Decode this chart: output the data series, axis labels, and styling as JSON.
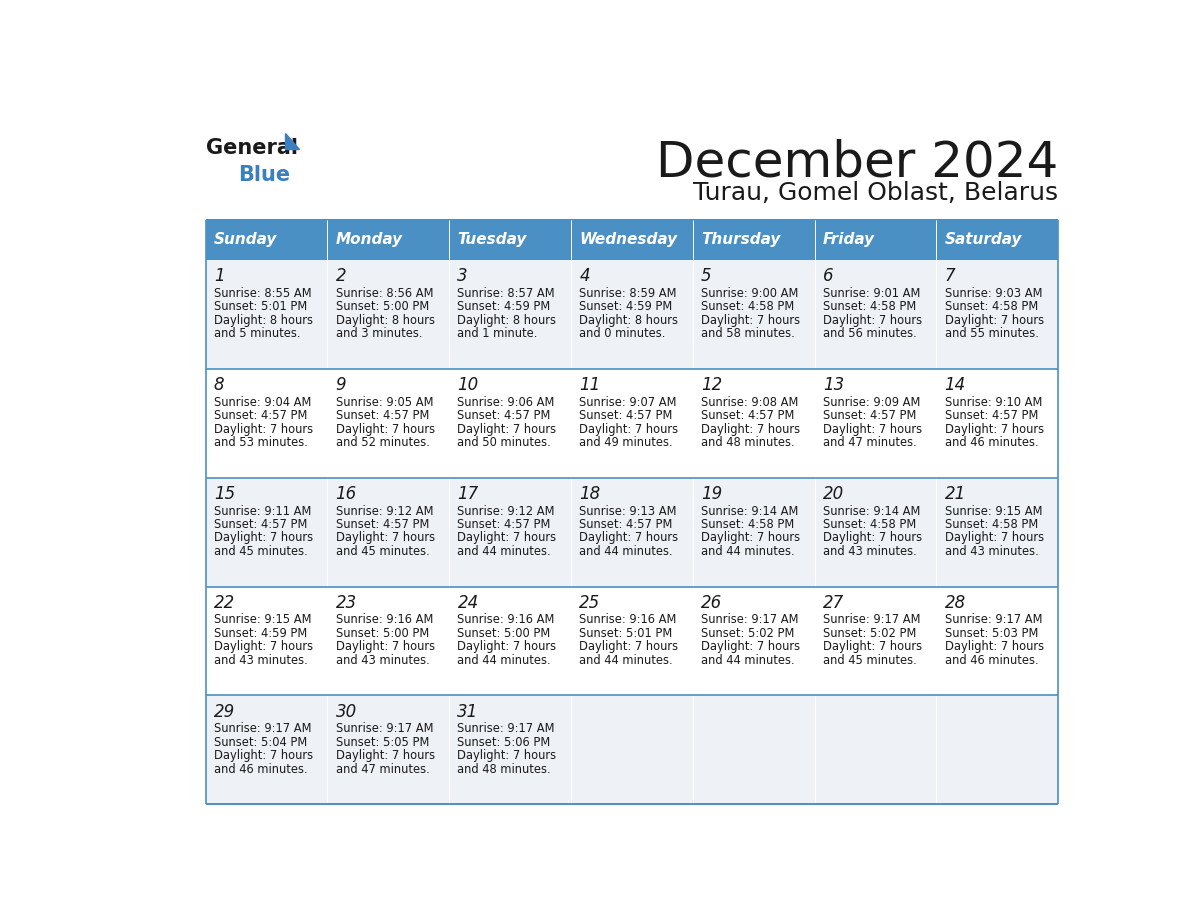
{
  "title": "December 2024",
  "subtitle": "Turau, Gomel Oblast, Belarus",
  "header_bg_color": "#4a90c4",
  "header_text_color": "#ffffff",
  "row_bg_even": "#eef2f7",
  "row_bg_odd": "#ffffff",
  "border_color": "#4a90c4",
  "days_of_week": [
    "Sunday",
    "Monday",
    "Tuesday",
    "Wednesday",
    "Thursday",
    "Friday",
    "Saturday"
  ],
  "calendar_data": [
    [
      {
        "day": 1,
        "sunrise": "8:55 AM",
        "sunset": "5:01 PM",
        "daylight_line1": "Daylight: 8 hours",
        "daylight_line2": "and 5 minutes."
      },
      {
        "day": 2,
        "sunrise": "8:56 AM",
        "sunset": "5:00 PM",
        "daylight_line1": "Daylight: 8 hours",
        "daylight_line2": "and 3 minutes."
      },
      {
        "day": 3,
        "sunrise": "8:57 AM",
        "sunset": "4:59 PM",
        "daylight_line1": "Daylight: 8 hours",
        "daylight_line2": "and 1 minute."
      },
      {
        "day": 4,
        "sunrise": "8:59 AM",
        "sunset": "4:59 PM",
        "daylight_line1": "Daylight: 8 hours",
        "daylight_line2": "and 0 minutes."
      },
      {
        "day": 5,
        "sunrise": "9:00 AM",
        "sunset": "4:58 PM",
        "daylight_line1": "Daylight: 7 hours",
        "daylight_line2": "and 58 minutes."
      },
      {
        "day": 6,
        "sunrise": "9:01 AM",
        "sunset": "4:58 PM",
        "daylight_line1": "Daylight: 7 hours",
        "daylight_line2": "and 56 minutes."
      },
      {
        "day": 7,
        "sunrise": "9:03 AM",
        "sunset": "4:58 PM",
        "daylight_line1": "Daylight: 7 hours",
        "daylight_line2": "and 55 minutes."
      }
    ],
    [
      {
        "day": 8,
        "sunrise": "9:04 AM",
        "sunset": "4:57 PM",
        "daylight_line1": "Daylight: 7 hours",
        "daylight_line2": "and 53 minutes."
      },
      {
        "day": 9,
        "sunrise": "9:05 AM",
        "sunset": "4:57 PM",
        "daylight_line1": "Daylight: 7 hours",
        "daylight_line2": "and 52 minutes."
      },
      {
        "day": 10,
        "sunrise": "9:06 AM",
        "sunset": "4:57 PM",
        "daylight_line1": "Daylight: 7 hours",
        "daylight_line2": "and 50 minutes."
      },
      {
        "day": 11,
        "sunrise": "9:07 AM",
        "sunset": "4:57 PM",
        "daylight_line1": "Daylight: 7 hours",
        "daylight_line2": "and 49 minutes."
      },
      {
        "day": 12,
        "sunrise": "9:08 AM",
        "sunset": "4:57 PM",
        "daylight_line1": "Daylight: 7 hours",
        "daylight_line2": "and 48 minutes."
      },
      {
        "day": 13,
        "sunrise": "9:09 AM",
        "sunset": "4:57 PM",
        "daylight_line1": "Daylight: 7 hours",
        "daylight_line2": "and 47 minutes."
      },
      {
        "day": 14,
        "sunrise": "9:10 AM",
        "sunset": "4:57 PM",
        "daylight_line1": "Daylight: 7 hours",
        "daylight_line2": "and 46 minutes."
      }
    ],
    [
      {
        "day": 15,
        "sunrise": "9:11 AM",
        "sunset": "4:57 PM",
        "daylight_line1": "Daylight: 7 hours",
        "daylight_line2": "and 45 minutes."
      },
      {
        "day": 16,
        "sunrise": "9:12 AM",
        "sunset": "4:57 PM",
        "daylight_line1": "Daylight: 7 hours",
        "daylight_line2": "and 45 minutes."
      },
      {
        "day": 17,
        "sunrise": "9:12 AM",
        "sunset": "4:57 PM",
        "daylight_line1": "Daylight: 7 hours",
        "daylight_line2": "and 44 minutes."
      },
      {
        "day": 18,
        "sunrise": "9:13 AM",
        "sunset": "4:57 PM",
        "daylight_line1": "Daylight: 7 hours",
        "daylight_line2": "and 44 minutes."
      },
      {
        "day": 19,
        "sunrise": "9:14 AM",
        "sunset": "4:58 PM",
        "daylight_line1": "Daylight: 7 hours",
        "daylight_line2": "and 44 minutes."
      },
      {
        "day": 20,
        "sunrise": "9:14 AM",
        "sunset": "4:58 PM",
        "daylight_line1": "Daylight: 7 hours",
        "daylight_line2": "and 43 minutes."
      },
      {
        "day": 21,
        "sunrise": "9:15 AM",
        "sunset": "4:58 PM",
        "daylight_line1": "Daylight: 7 hours",
        "daylight_line2": "and 43 minutes."
      }
    ],
    [
      {
        "day": 22,
        "sunrise": "9:15 AM",
        "sunset": "4:59 PM",
        "daylight_line1": "Daylight: 7 hours",
        "daylight_line2": "and 43 minutes."
      },
      {
        "day": 23,
        "sunrise": "9:16 AM",
        "sunset": "5:00 PM",
        "daylight_line1": "Daylight: 7 hours",
        "daylight_line2": "and 43 minutes."
      },
      {
        "day": 24,
        "sunrise": "9:16 AM",
        "sunset": "5:00 PM",
        "daylight_line1": "Daylight: 7 hours",
        "daylight_line2": "and 44 minutes."
      },
      {
        "day": 25,
        "sunrise": "9:16 AM",
        "sunset": "5:01 PM",
        "daylight_line1": "Daylight: 7 hours",
        "daylight_line2": "and 44 minutes."
      },
      {
        "day": 26,
        "sunrise": "9:17 AM",
        "sunset": "5:02 PM",
        "daylight_line1": "Daylight: 7 hours",
        "daylight_line2": "and 44 minutes."
      },
      {
        "day": 27,
        "sunrise": "9:17 AM",
        "sunset": "5:02 PM",
        "daylight_line1": "Daylight: 7 hours",
        "daylight_line2": "and 45 minutes."
      },
      {
        "day": 28,
        "sunrise": "9:17 AM",
        "sunset": "5:03 PM",
        "daylight_line1": "Daylight: 7 hours",
        "daylight_line2": "and 46 minutes."
      }
    ],
    [
      {
        "day": 29,
        "sunrise": "9:17 AM",
        "sunset": "5:04 PM",
        "daylight_line1": "Daylight: 7 hours",
        "daylight_line2": "and 46 minutes."
      },
      {
        "day": 30,
        "sunrise": "9:17 AM",
        "sunset": "5:05 PM",
        "daylight_line1": "Daylight: 7 hours",
        "daylight_line2": "and 47 minutes."
      },
      {
        "day": 31,
        "sunrise": "9:17 AM",
        "sunset": "5:06 PM",
        "daylight_line1": "Daylight: 7 hours",
        "daylight_line2": "and 48 minutes."
      },
      null,
      null,
      null,
      null
    ]
  ]
}
